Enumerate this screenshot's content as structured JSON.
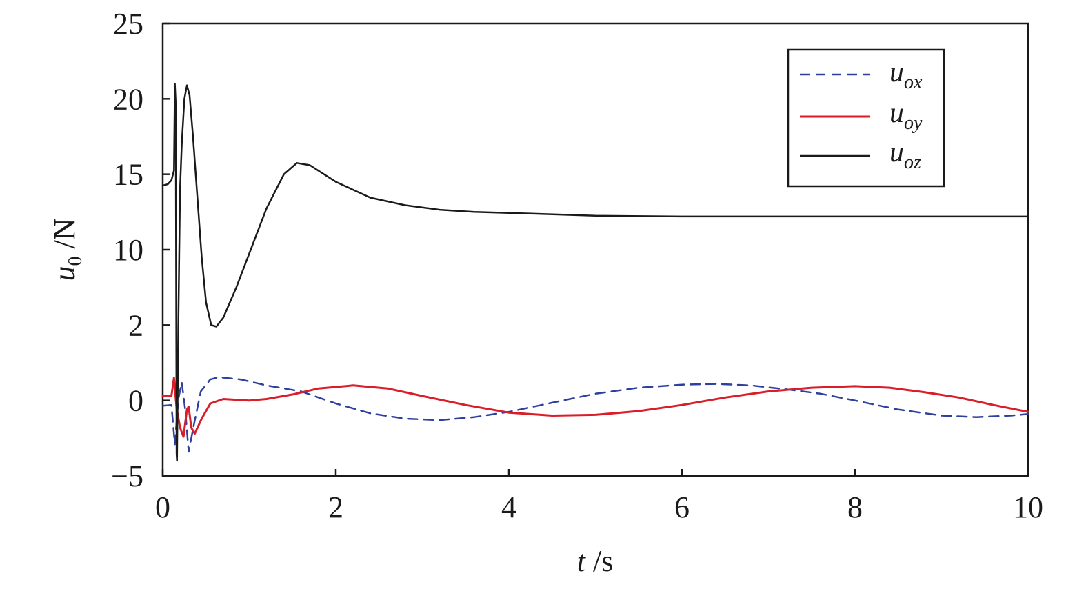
{
  "chart_data": {
    "type": "line",
    "xlabel": {
      "var": "t",
      "unit": " /s"
    },
    "ylabel": {
      "var": "u",
      "sub": "0",
      "unit": " /N"
    },
    "xlim": [
      0,
      10
    ],
    "x_ticks": [
      "0",
      "2",
      "4",
      "6",
      "8",
      "10"
    ],
    "y_ticks": [
      "−5",
      "0",
      "2",
      "10",
      "15",
      "20",
      "25"
    ],
    "y_tick_note": "axis printed with non-uniform labels; tick positions evenly spaced (band index 0..6)",
    "grid": false,
    "legend_position": "top-right",
    "series": [
      {
        "name": "u_ox",
        "label_main": "u",
        "label_sub": "ox",
        "color": "#2e3f9e",
        "dash": "dashed",
        "points": [
          [
            0,
            -0.35
          ],
          [
            0.1,
            -0.3
          ],
          [
            0.14,
            -2.9
          ],
          [
            0.18,
            0.1
          ],
          [
            0.22,
            1.2
          ],
          [
            0.26,
            -0.6
          ],
          [
            0.3,
            -3.4
          ],
          [
            0.36,
            -1.6
          ],
          [
            0.44,
            0.6
          ],
          [
            0.55,
            1.4
          ],
          [
            0.65,
            1.55
          ],
          [
            0.9,
            1.4
          ],
          [
            1.2,
            1.0
          ],
          [
            1.6,
            0.6
          ],
          [
            2.0,
            -0.2
          ],
          [
            2.4,
            -0.85
          ],
          [
            2.8,
            -1.2
          ],
          [
            3.2,
            -1.3
          ],
          [
            3.6,
            -1.1
          ],
          [
            4.0,
            -0.75
          ],
          [
            4.5,
            -0.15
          ],
          [
            5.0,
            0.45
          ],
          [
            5.5,
            0.85
          ],
          [
            6.0,
            1.05
          ],
          [
            6.4,
            1.1
          ],
          [
            6.8,
            1.0
          ],
          [
            7.2,
            0.75
          ],
          [
            7.6,
            0.45
          ],
          [
            8.0,
            0.0
          ],
          [
            8.5,
            -0.6
          ],
          [
            9.0,
            -1.0
          ],
          [
            9.4,
            -1.1
          ],
          [
            9.8,
            -1.0
          ],
          [
            10,
            -0.9
          ]
        ]
      },
      {
        "name": "u_oy",
        "label_main": "u",
        "label_sub": "oy",
        "color": "#d91e2a",
        "dash": "solid",
        "points": [
          [
            0,
            0.3
          ],
          [
            0.1,
            0.3
          ],
          [
            0.13,
            1.5
          ],
          [
            0.16,
            -0.5
          ],
          [
            0.2,
            -1.8
          ],
          [
            0.24,
            -2.4
          ],
          [
            0.28,
            -0.6
          ],
          [
            0.3,
            -0.4
          ],
          [
            0.33,
            -1.8
          ],
          [
            0.37,
            -2.2
          ],
          [
            0.45,
            -1.2
          ],
          [
            0.55,
            -0.2
          ],
          [
            0.7,
            0.1
          ],
          [
            1.0,
            0.0
          ],
          [
            1.2,
            0.1
          ],
          [
            1.5,
            0.4
          ],
          [
            1.8,
            0.8
          ],
          [
            2.2,
            1.0
          ],
          [
            2.6,
            0.8
          ],
          [
            3.0,
            0.3
          ],
          [
            3.5,
            -0.3
          ],
          [
            4.0,
            -0.8
          ],
          [
            4.5,
            -1.0
          ],
          [
            5.0,
            -0.95
          ],
          [
            5.5,
            -0.7
          ],
          [
            6.0,
            -0.3
          ],
          [
            6.5,
            0.2
          ],
          [
            7.0,
            0.6
          ],
          [
            7.5,
            0.85
          ],
          [
            8.0,
            0.95
          ],
          [
            8.4,
            0.85
          ],
          [
            8.8,
            0.55
          ],
          [
            9.2,
            0.2
          ],
          [
            9.6,
            -0.3
          ],
          [
            10,
            -0.75
          ]
        ]
      },
      {
        "name": "u_oz",
        "label_main": "u",
        "label_sub": "oz",
        "color": "#1a1a1a",
        "dash": "solid",
        "points": [
          [
            0,
            3.85
          ],
          [
            0.06,
            3.87
          ],
          [
            0.1,
            3.92
          ],
          [
            0.13,
            4.05
          ],
          [
            0.14,
            5.2
          ],
          [
            0.15,
            4.95
          ],
          [
            0.16,
            0.3
          ],
          [
            0.165,
            0.2
          ],
          [
            0.18,
            2.0
          ],
          [
            0.2,
            3.8
          ],
          [
            0.22,
            4.4
          ],
          [
            0.25,
            5.0
          ],
          [
            0.28,
            5.18
          ],
          [
            0.31,
            5.05
          ],
          [
            0.35,
            4.5
          ],
          [
            0.4,
            3.7
          ],
          [
            0.45,
            2.9
          ],
          [
            0.5,
            2.3
          ],
          [
            0.56,
            2.0
          ],
          [
            0.62,
            1.98
          ],
          [
            0.7,
            2.1
          ],
          [
            0.85,
            2.5
          ],
          [
            1.0,
            2.95
          ],
          [
            1.2,
            3.55
          ],
          [
            1.4,
            4.0
          ],
          [
            1.55,
            4.15
          ],
          [
            1.7,
            4.12
          ],
          [
            2.0,
            3.9
          ],
          [
            2.4,
            3.69
          ],
          [
            2.8,
            3.59
          ],
          [
            3.2,
            3.53
          ],
          [
            3.6,
            3.5
          ],
          [
            4.2,
            3.48
          ],
          [
            5.0,
            3.45
          ],
          [
            6.0,
            3.44
          ],
          [
            8.0,
            3.44
          ],
          [
            10,
            3.44
          ]
        ]
      }
    ]
  }
}
